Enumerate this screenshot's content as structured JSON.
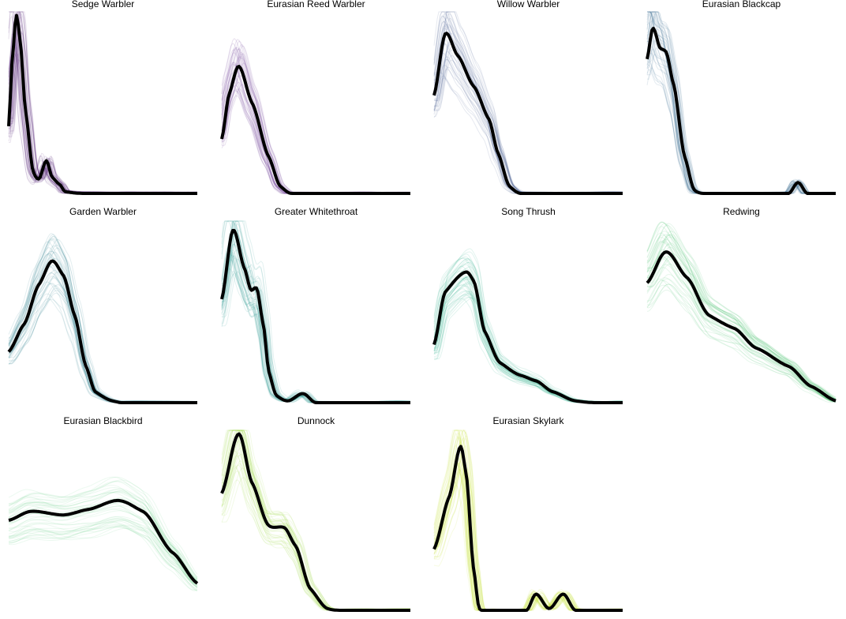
{
  "chart_data": {
    "type": "line",
    "title": "",
    "xlabel": "",
    "ylabel": "",
    "grid": false,
    "axes_visible": false,
    "note_faint_lines": "many semi-transparent replicate curves per panel in the panel colour, with one bold black curve",
    "panels": [
      {
        "title": "Sedge Warbler",
        "color": "#46136a",
        "points": [
          [
            0,
            0.37
          ],
          [
            0.02,
            0.75
          ],
          [
            0.04,
            0.98
          ],
          [
            0.06,
            0.85
          ],
          [
            0.09,
            0.45
          ],
          [
            0.13,
            0.12
          ],
          [
            0.16,
            0.08
          ],
          [
            0.2,
            0.18
          ],
          [
            0.23,
            0.09
          ],
          [
            0.27,
            0.05
          ],
          [
            0.3,
            0.01
          ],
          [
            0.4,
            0
          ],
          [
            1,
            0
          ]
        ]
      },
      {
        "title": "Eurasian Reed Warbler",
        "color": "#5a2a8a",
        "points": [
          [
            0,
            0.3
          ],
          [
            0.04,
            0.55
          ],
          [
            0.09,
            0.7
          ],
          [
            0.16,
            0.5
          ],
          [
            0.25,
            0.2
          ],
          [
            0.31,
            0.04
          ],
          [
            0.37,
            0
          ],
          [
            1,
            0
          ]
        ]
      },
      {
        "title": "Willow Warbler",
        "color": "#3b528b",
        "points": [
          [
            0,
            0.54
          ],
          [
            0.06,
            0.88
          ],
          [
            0.125,
            0.76
          ],
          [
            0.21,
            0.59
          ],
          [
            0.29,
            0.41
          ],
          [
            0.34,
            0.22
          ],
          [
            0.4,
            0.04
          ],
          [
            0.46,
            0
          ],
          [
            1,
            0
          ]
        ]
      },
      {
        "title": "Eurasian Blackcap",
        "color": "#31688e",
        "points": [
          [
            0,
            0.74
          ],
          [
            0.03,
            0.91
          ],
          [
            0.07,
            0.8
          ],
          [
            0.1,
            0.78
          ],
          [
            0.14,
            0.6
          ],
          [
            0.2,
            0.2
          ],
          [
            0.25,
            0.02
          ],
          [
            0.3,
            0
          ],
          [
            0.75,
            0
          ],
          [
            0.8,
            0.06
          ],
          [
            0.85,
            0
          ],
          [
            1,
            0
          ]
        ]
      },
      {
        "title": "Garden Warbler",
        "color": "#2a788e",
        "points": [
          [
            0,
            0.28
          ],
          [
            0.08,
            0.43
          ],
          [
            0.16,
            0.65
          ],
          [
            0.23,
            0.78
          ],
          [
            0.29,
            0.7
          ],
          [
            0.35,
            0.48
          ],
          [
            0.41,
            0.2
          ],
          [
            0.46,
            0.06
          ],
          [
            0.55,
            0.01
          ],
          [
            0.6,
            0
          ],
          [
            1,
            0
          ]
        ]
      },
      {
        "title": "Greater Whitethroat",
        "color": "#21918c",
        "points": [
          [
            0,
            0.57
          ],
          [
            0.06,
            0.95
          ],
          [
            0.12,
            0.74
          ],
          [
            0.155,
            0.62
          ],
          [
            0.185,
            0.63
          ],
          [
            0.22,
            0.43
          ],
          [
            0.25,
            0.17
          ],
          [
            0.29,
            0.04
          ],
          [
            0.35,
            0.01
          ],
          [
            0.43,
            0.05
          ],
          [
            0.5,
            0
          ],
          [
            1,
            0
          ]
        ]
      },
      {
        "title": "Song Thrush",
        "color": "#22a884",
        "points": [
          [
            0,
            0.32
          ],
          [
            0.06,
            0.61
          ],
          [
            0.17,
            0.72
          ],
          [
            0.21,
            0.67
          ],
          [
            0.27,
            0.39
          ],
          [
            0.35,
            0.22
          ],
          [
            0.46,
            0.15
          ],
          [
            0.54,
            0.12
          ],
          [
            0.63,
            0.06
          ],
          [
            0.75,
            0.01
          ],
          [
            0.85,
            0
          ],
          [
            1,
            0
          ]
        ]
      },
      {
        "title": "Redwing",
        "color": "#44bf70",
        "points": [
          [
            0,
            0.66
          ],
          [
            0.1,
            0.83
          ],
          [
            0.21,
            0.69
          ],
          [
            0.33,
            0.48
          ],
          [
            0.46,
            0.41
          ],
          [
            0.58,
            0.3
          ],
          [
            0.75,
            0.2
          ],
          [
            0.87,
            0.09
          ],
          [
            1,
            0.01
          ]
        ]
      },
      {
        "title": "Eurasian Blackbird",
        "color": "#6ccf8a",
        "points": [
          [
            0,
            0.5
          ],
          [
            0.12,
            0.55
          ],
          [
            0.29,
            0.53
          ],
          [
            0.42,
            0.56
          ],
          [
            0.58,
            0.61
          ],
          [
            0.71,
            0.55
          ],
          [
            0.87,
            0.32
          ],
          [
            1,
            0.15
          ]
        ]
      },
      {
        "title": "Dunnock",
        "color": "#9bd93c",
        "points": [
          [
            0,
            0.65
          ],
          [
            0.09,
            0.98
          ],
          [
            0.16,
            0.71
          ],
          [
            0.25,
            0.47
          ],
          [
            0.33,
            0.46
          ],
          [
            0.39,
            0.36
          ],
          [
            0.47,
            0.12
          ],
          [
            0.56,
            0.01
          ],
          [
            0.63,
            0
          ],
          [
            1,
            0
          ]
        ]
      },
      {
        "title": "Eurasian Skylark",
        "color": "#c2df23",
        "points": [
          [
            0,
            0.34
          ],
          [
            0.08,
            0.63
          ],
          [
            0.14,
            0.91
          ],
          [
            0.17,
            0.76
          ],
          [
            0.21,
            0.23
          ],
          [
            0.24,
            0.01
          ],
          [
            0.3,
            0
          ],
          [
            0.49,
            0
          ],
          [
            0.54,
            0.09
          ],
          [
            0.61,
            0.01
          ],
          [
            0.685,
            0.09
          ],
          [
            0.75,
            0
          ],
          [
            1,
            0
          ]
        ]
      }
    ]
  }
}
